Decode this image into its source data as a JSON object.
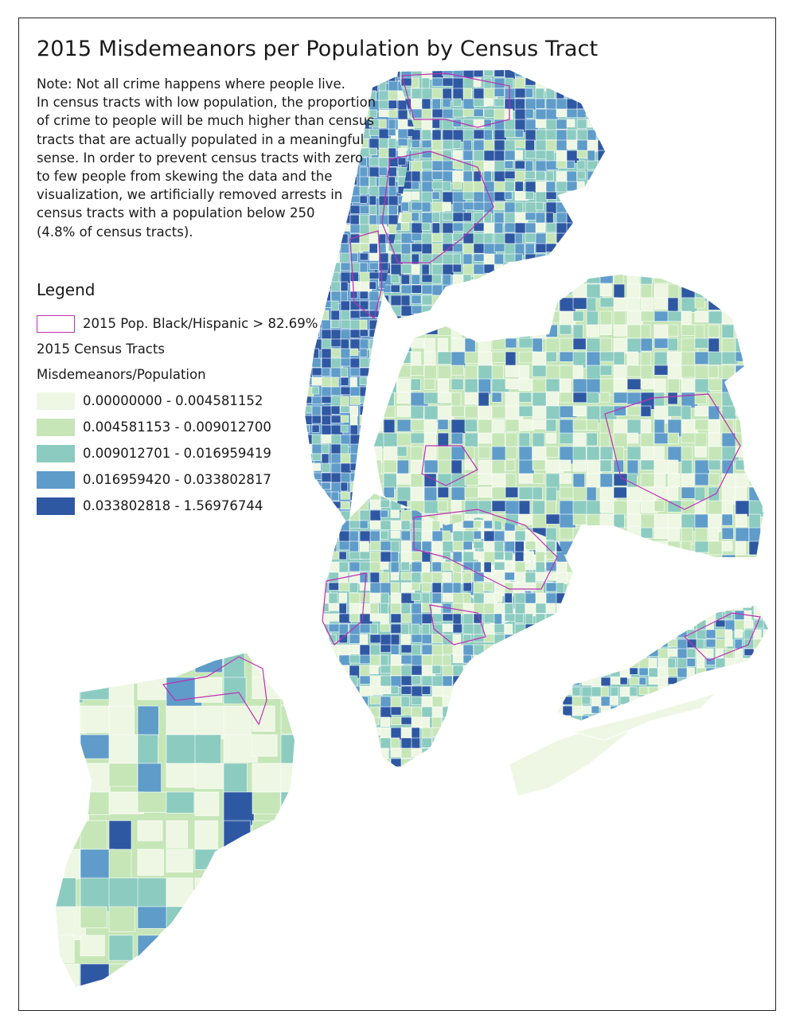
{
  "title": "2015 Misdemeanors per Population by Census Tract",
  "note_lines": [
    "Note: Not all crime happens where people live.",
    "In census tracts with low population, the proportion",
    "of crime to people will be much higher than census",
    "tracts that are actually populated in a meaningful",
    "sense. In order to prevent census tracts with zero",
    "to few people from skewing the data and the",
    "visualization, we artificially removed arrests in",
    "census tracts with a population below 250",
    "(4.8% of census tracts)."
  ],
  "legend": {
    "title": "Legend",
    "overlay": {
      "label": "2015 Pop. Black/Hispanic > 82.69%",
      "color": "#c02fb4"
    },
    "layer_name": "2015 Census Tracts",
    "field_name": "Misdemeanors/Population",
    "classes": [
      {
        "label": "0.00000000 - 0.004581152",
        "color": "#eef7e3"
      },
      {
        "label": "0.004581153 - 0.009012700",
        "color": "#c6e6b8"
      },
      {
        "label": "0.009012701 - 0.016959419",
        "color": "#8ccbc0"
      },
      {
        "label": "0.016959420 - 0.033802817",
        "color": "#5f9cc9"
      },
      {
        "label": "0.033802818 - 1.56976744",
        "color": "#2f58a3"
      }
    ]
  }
}
